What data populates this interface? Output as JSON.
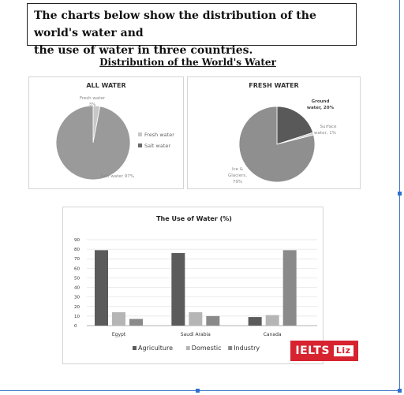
{
  "prompt": {
    "line1": "The charts below show the distribution of the world's water and",
    "line2": "the use of water in three countries."
  },
  "main_title": "Distribution of the World's Water",
  "colors": {
    "agriculture": "#5b5b5b",
    "domestic": "#b5b5b5",
    "industry": "#8a8a8a",
    "fresh": "#c8c8c8",
    "salt": "#9a9a9a",
    "ground": "#595959",
    "surface": "#d0d0d0",
    "ice": "#8f8f8f",
    "brand": "#d7232f",
    "frame": "#3c78c8"
  },
  "chart_data": [
    {
      "type": "pie",
      "title": "ALL WATER",
      "slices": [
        {
          "name": "Fresh water",
          "value": 3,
          "label_lines": [
            "Fresh water",
            "3%"
          ]
        },
        {
          "name": "Salt water",
          "value": 97,
          "label_lines": [
            "Salt water 97%"
          ]
        }
      ],
      "legend": [
        "Fresh water",
        "Salt water"
      ],
      "legend_position": "right"
    },
    {
      "type": "pie",
      "title": "FRESH WATER",
      "slices": [
        {
          "name": "Ground water",
          "value": 20,
          "label_lines": [
            "Ground",
            "water, 20%"
          ]
        },
        {
          "name": "Surface water",
          "value": 1,
          "label_lines": [
            "Surface",
            "water, 1%"
          ]
        },
        {
          "name": "Ice & Glaciers",
          "value": 79,
          "label_lines": [
            "Ice &",
            "Glaciers,",
            "79%"
          ]
        }
      ]
    },
    {
      "type": "bar",
      "title": "The Use of Water (%)",
      "categories": [
        "Egypt",
        "Saudi Arabia",
        "Canada"
      ],
      "series": [
        {
          "name": "Agriculture",
          "values": [
            79,
            76,
            9
          ]
        },
        {
          "name": "Domestic",
          "values": [
            14,
            14,
            11
          ]
        },
        {
          "name": "Industry",
          "values": [
            7,
            10,
            79
          ]
        }
      ],
      "ylim": [
        0,
        90
      ],
      "yticks": [
        "0",
        "10",
        "20",
        "30",
        "40",
        "50",
        "60",
        "70",
        "80",
        "90"
      ],
      "grid": true,
      "legend_position": "bottom"
    }
  ],
  "brand": {
    "part1": "IELTS",
    "part2": "Liz"
  }
}
